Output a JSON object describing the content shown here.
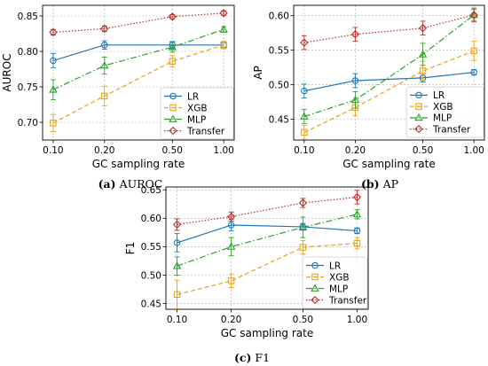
{
  "colors": {
    "LR": "#1f77b4",
    "XGB": "#e8a317",
    "MLP": "#2ca02c",
    "Transfer": "#b5302a",
    "grid": "#b0b0b0"
  },
  "series_styles": {
    "LR": {
      "marker": "circle",
      "dash": "solid"
    },
    "XGB": {
      "marker": "square",
      "dash": "dashed"
    },
    "MLP": {
      "marker": "triangle",
      "dash": "dashdot"
    },
    "Transfer": {
      "marker": "diamond",
      "dash": "dotted"
    }
  },
  "chart_data": [
    {
      "type": "line",
      "caption_tag": "(a)",
      "caption_text": "AUROC",
      "xlabel": "GC sampling rate",
      "ylabel": "AUROC",
      "xscale": "log",
      "x": [
        0.1,
        0.2,
        0.5,
        1.0
      ],
      "xtick_labels": [
        "0.10",
        "0.20",
        "0.50",
        "1.00"
      ],
      "ylim": [
        0.675,
        0.865
      ],
      "yticks": [
        0.7,
        0.75,
        0.8,
        0.85
      ],
      "ytick_labels": [
        "0.70",
        "0.75",
        "0.80",
        "0.85"
      ],
      "grid": true,
      "legend_position": "lower-right",
      "series": [
        {
          "name": "LR",
          "values": [
            0.787,
            0.809,
            0.809,
            0.809
          ],
          "errors": [
            0.01,
            0.006,
            0.005,
            0.005
          ]
        },
        {
          "name": "XGB",
          "values": [
            0.699,
            0.737,
            0.786,
            0.809
          ],
          "errors": [
            0.012,
            0.014,
            0.008,
            0.005
          ]
        },
        {
          "name": "MLP",
          "values": [
            0.746,
            0.78,
            0.806,
            0.831
          ],
          "errors": [
            0.014,
            0.012,
            0.007,
            0.004
          ]
        },
        {
          "name": "Transfer",
          "values": [
            0.827,
            0.832,
            0.849,
            0.854
          ],
          "errors": [
            0.004,
            0.004,
            0.003,
            0.003
          ]
        }
      ]
    },
    {
      "type": "line",
      "caption_tag": "(b)",
      "caption_text": "AP",
      "xlabel": "GC sampling rate",
      "ylabel": "AP",
      "xscale": "log",
      "x": [
        0.1,
        0.2,
        0.5,
        1.0
      ],
      "xtick_labels": [
        "0.10",
        "0.20",
        "0.50",
        "1.00"
      ],
      "ylim": [
        0.42,
        0.615
      ],
      "yticks": [
        0.45,
        0.5,
        0.55,
        0.6
      ],
      "ytick_labels": [
        "0.45",
        "0.50",
        "0.55",
        "0.60"
      ],
      "grid": true,
      "legend_position": "lower-right",
      "series": [
        {
          "name": "LR",
          "values": [
            0.491,
            0.506,
            0.51,
            0.518
          ],
          "errors": [
            0.01,
            0.01,
            0.006,
            0.004
          ]
        },
        {
          "name": "XGB",
          "values": [
            0.431,
            0.467,
            0.52,
            0.549
          ],
          "errors": [
            0.01,
            0.012,
            0.014,
            0.014
          ]
        },
        {
          "name": "MLP",
          "values": [
            0.454,
            0.478,
            0.544,
            0.601
          ],
          "errors": [
            0.01,
            0.012,
            0.016,
            0.008
          ]
        },
        {
          "name": "Transfer",
          "values": [
            0.561,
            0.573,
            0.582,
            0.601
          ],
          "errors": [
            0.01,
            0.01,
            0.01,
            0.01
          ]
        }
      ]
    },
    {
      "type": "line",
      "caption_tag": "(c)",
      "caption_text": "F1",
      "xlabel": "GC sampling rate",
      "ylabel": "F1",
      "xscale": "log",
      "x": [
        0.1,
        0.2,
        0.5,
        1.0
      ],
      "xtick_labels": [
        "0.10",
        "0.20",
        "0.50",
        "1.00"
      ],
      "ylim": [
        0.44,
        0.655
      ],
      "yticks": [
        0.45,
        0.5,
        0.55,
        0.6,
        0.65
      ],
      "ytick_labels": [
        "0.45",
        "0.50",
        "0.55",
        "0.60",
        "0.65"
      ],
      "grid": true,
      "legend_position": "lower-right",
      "series": [
        {
          "name": "LR",
          "values": [
            0.557,
            0.588,
            0.585,
            0.578
          ],
          "errors": [
            0.016,
            0.01,
            0.006,
            0.005
          ]
        },
        {
          "name": "XGB",
          "values": [
            0.466,
            0.49,
            0.549,
            0.556
          ],
          "errors": [
            0.025,
            0.012,
            0.012,
            0.01
          ]
        },
        {
          "name": "MLP",
          "values": [
            0.516,
            0.55,
            0.584,
            0.607
          ],
          "errors": [
            0.016,
            0.016,
            0.018,
            0.008
          ]
        },
        {
          "name": "Transfer",
          "values": [
            0.589,
            0.603,
            0.627,
            0.637
          ],
          "errors": [
            0.01,
            0.008,
            0.008,
            0.012
          ]
        }
      ]
    }
  ]
}
